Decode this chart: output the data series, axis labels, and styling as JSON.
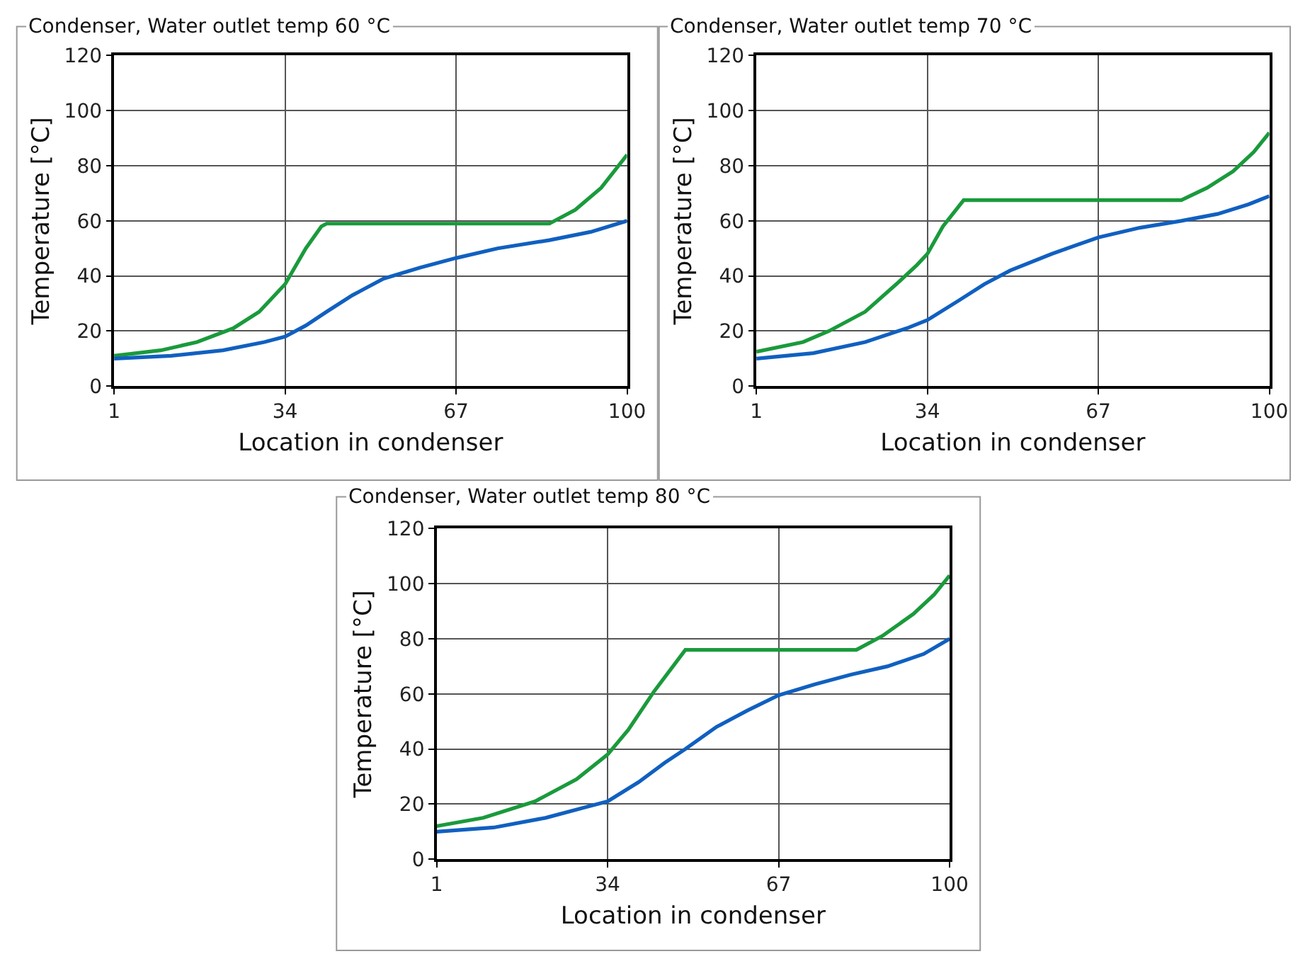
{
  "chart_data": [
    {
      "type": "line",
      "title": "Condenser, Water outlet temp 60 °C",
      "xlabel": "Location in condenser",
      "ylabel": "Temperature [°C]",
      "xlim": [
        1,
        100
      ],
      "xticks": [
        1,
        34,
        67,
        100
      ],
      "ylim": [
        0,
        120
      ],
      "yticks": [
        0,
        20,
        40,
        60,
        80,
        100,
        120
      ],
      "grid": true,
      "line_style": "solid",
      "marker": "none",
      "series": [
        {
          "color": "#1a9a3c",
          "x": [
            1,
            10,
            17,
            24,
            29,
            34,
            38,
            41,
            42,
            85,
            90,
            95,
            100
          ],
          "values": [
            11,
            13,
            16,
            21,
            27,
            37,
            50,
            58,
            59,
            59,
            64,
            72,
            84
          ]
        },
        {
          "color": "#1060c0",
          "x": [
            1,
            12,
            22,
            30,
            34,
            38,
            42,
            47,
            53,
            60,
            67,
            75,
            85,
            93,
            100
          ],
          "values": [
            10,
            11,
            13,
            16,
            18,
            22,
            27,
            33,
            39,
            43,
            46.5,
            50,
            53,
            56,
            60
          ]
        }
      ]
    },
    {
      "type": "line",
      "title": "Condenser, Water outlet temp 70 °C",
      "xlabel": "Location in condenser",
      "ylabel": "Temperature [°C]",
      "xlim": [
        1,
        100
      ],
      "xticks": [
        1,
        34,
        67,
        100
      ],
      "ylim": [
        0,
        120
      ],
      "yticks": [
        0,
        20,
        40,
        60,
        80,
        100,
        120
      ],
      "grid": true,
      "line_style": "solid",
      "marker": "none",
      "series": [
        {
          "color": "#1a9a3c",
          "x": [
            1,
            10,
            15,
            22,
            28,
            32,
            34,
            37,
            41,
            83,
            88,
            93,
            97,
            100
          ],
          "values": [
            12.5,
            16,
            20,
            27,
            37,
            44,
            48,
            58,
            67.5,
            67.5,
            72,
            78,
            85,
            92
          ]
        },
        {
          "color": "#1060c0",
          "x": [
            1,
            12,
            22,
            30,
            34,
            40,
            45,
            50,
            58,
            67,
            75,
            83,
            90,
            96,
            100
          ],
          "values": [
            10,
            12,
            16,
            21,
            24,
            31,
            37,
            42,
            48,
            54,
            57.5,
            60,
            62.5,
            66,
            69
          ]
        }
      ]
    },
    {
      "type": "line",
      "title": "Condenser, Water outlet temp 80 °C",
      "xlabel": "Location in condenser",
      "ylabel": "Temperature [°C]",
      "xlim": [
        1,
        100
      ],
      "xticks": [
        1,
        34,
        67,
        100
      ],
      "ylim": [
        0,
        120
      ],
      "yticks": [
        0,
        20,
        40,
        60,
        80,
        100,
        120
      ],
      "grid": true,
      "line_style": "solid",
      "marker": "none",
      "series": [
        {
          "color": "#1a9a3c",
          "x": [
            1,
            10,
            20,
            28,
            34,
            38,
            43,
            49,
            82,
            87,
            93,
            97,
            100
          ],
          "values": [
            12,
            15,
            21,
            29,
            38,
            47,
            61,
            76,
            76,
            81,
            89,
            96,
            103
          ]
        },
        {
          "color": "#1060c0",
          "x": [
            1,
            12,
            22,
            30,
            34,
            40,
            45,
            49,
            55,
            61,
            67,
            74,
            81,
            88,
            95,
            100
          ],
          "values": [
            10,
            11.5,
            15,
            19,
            21,
            28,
            35,
            40,
            48,
            54,
            59.5,
            63.5,
            67,
            70,
            74.5,
            80
          ]
        }
      ]
    }
  ]
}
